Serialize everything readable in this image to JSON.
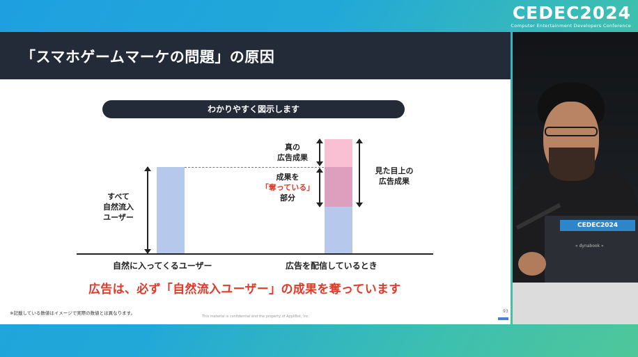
{
  "event": {
    "logo_text": "CEDEC2024",
    "logo_subtitle": "Computer Entertainment Developers Conference"
  },
  "slide": {
    "title": "「スマホゲームマーケの問題」の原因",
    "pill_label": "わかりやすく図示します",
    "labels": {
      "all_users": [
        "すべて",
        "自然流入",
        "ユーザー"
      ],
      "true_result": [
        "真の",
        "広告成果"
      ],
      "stolen_line1": "成果を",
      "stolen_line2": "「奪っている」",
      "stolen_line3": "部分",
      "apparent_result": [
        "見た目上の",
        "広告成果"
      ]
    },
    "categories": [
      "自然に入ってくるユーザー",
      "広告を配信しているとき"
    ],
    "conclusion": "広告は、必ず「自然流入ユーザー」の成果を奪っています",
    "footnote": "※記載している数値はイメージで実際の数値とは異なります。",
    "confidential": "This material is confidential and the property of AppliBot, Inc.",
    "page_number": "93",
    "colors": {
      "header": "#232b38",
      "bar_blue": "#b6c9ec",
      "stolen_pink": "#dc9fbd",
      "true_pink": "#f8c0d2",
      "accent_red": "#e03a2a"
    }
  },
  "camera": {
    "laptop_sticker": "CEDEC2024",
    "laptop_brand": "« dynabook »"
  }
}
